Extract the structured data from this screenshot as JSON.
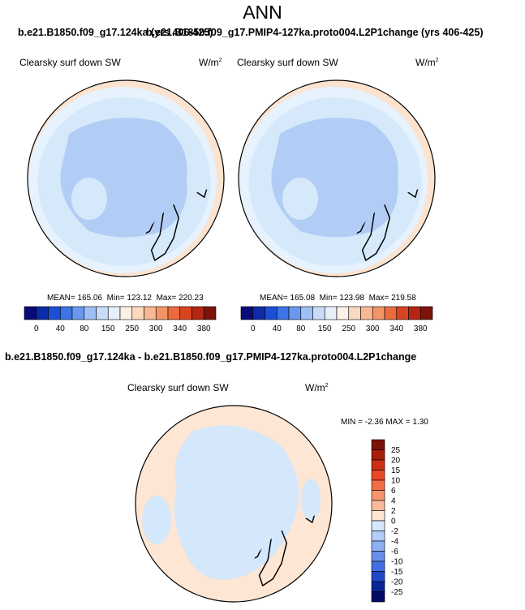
{
  "page": {
    "main_title": "ANN",
    "title_left": "b.e21.B1850.f09_g17.124ka (yrs 406-425)",
    "title_right": "b.e21.B1850.f09_g17.PMIP4-127ka.proto004.L2P1change (yrs 406-425)",
    "diff_title": "b.e21.B1850.f09_g17.124ka - b.e21.B1850.f09_g17.PMIP4-127ka.proto004.L2P1change"
  },
  "colors": {
    "ocean_main": "#d6e9fb",
    "ocean_light": "#e6f2fd",
    "land_inner": "#b2cdf5",
    "land_mid": "#a8c4f2",
    "rim": "#fbe3cf",
    "diff_pos": "#fde6d3",
    "diff_neg": "#d5e7fa",
    "coast": "#000000"
  },
  "chart_data": [
    {
      "type": "heatmap",
      "panel": "left",
      "variable": "Clearsky surf down SW",
      "units": "W/m",
      "units_exp": "2",
      "mean_label": "MEAN=",
      "mean": "165.06",
      "min_label": "Min=",
      "min": "123.12",
      "max_label": "Max=",
      "max": "220.23",
      "colorbar_ticks": [
        "0",
        "40",
        "80",
        "150",
        "250",
        "300",
        "340",
        "380"
      ],
      "colorbar_colors": [
        "#0a0a78",
        "#0d2aa8",
        "#1c4fd6",
        "#3d73e8",
        "#6a98f0",
        "#9fbef5",
        "#c8dcf8",
        "#e6f0fb",
        "#fdf1e6",
        "#fbd9bf",
        "#f8b894",
        "#f49466",
        "#ec6b3e",
        "#d94422",
        "#b4260f",
        "#7c1208"
      ]
    },
    {
      "type": "heatmap",
      "panel": "right",
      "variable": "Clearsky surf down SW",
      "units": "W/m",
      "units_exp": "2",
      "mean_label": "MEAN=",
      "mean": "165.08",
      "min_label": "Min=",
      "min": "123.98",
      "max_label": "Max=",
      "max": "219.58",
      "colorbar_ticks": [
        "0",
        "40",
        "80",
        "150",
        "250",
        "300",
        "340",
        "380"
      ],
      "colorbar_colors": [
        "#0a0a78",
        "#0d2aa8",
        "#1c4fd6",
        "#3d73e8",
        "#6a98f0",
        "#9fbef5",
        "#c8dcf8",
        "#e6f0fb",
        "#fdf1e6",
        "#fbd9bf",
        "#f8b894",
        "#f49466",
        "#ec6b3e",
        "#d94422",
        "#b4260f",
        "#7c1208"
      ]
    },
    {
      "type": "heatmap",
      "panel": "difference",
      "variable": "Clearsky surf down SW",
      "units": "W/m",
      "units_exp": "2",
      "min_label": "MIN =",
      "min": "-2.36",
      "max_label": "MAX =",
      "max": "1.30",
      "colorbar_ticks": [
        "25",
        "20",
        "15",
        "10",
        "6",
        "4",
        "2",
        "0",
        "-2",
        "-4",
        "-6",
        "-10",
        "-15",
        "-20",
        "-25"
      ],
      "colorbar_colors": [
        "#7c1208",
        "#a81c0c",
        "#cc2f14",
        "#e84a26",
        "#f26e48",
        "#f6946e",
        "#f9b99a",
        "#fde6d3",
        "#d5e7fa",
        "#b1cdf6",
        "#8cb0f0",
        "#678fea",
        "#416ee0",
        "#1f47c4",
        "#0b2496",
        "#050a66"
      ]
    }
  ]
}
